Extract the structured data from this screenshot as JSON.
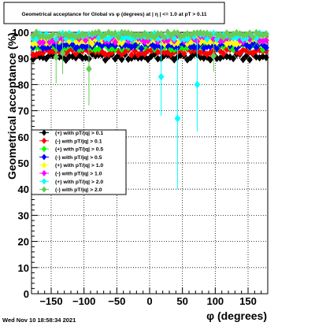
{
  "chart_data": {
    "type": "scatter",
    "title": "Geometrical acceptance for Global vs φ (degrees) at | η | <= 1.0 at pT > 0.11",
    "xlabel": "φ (degrees)",
    "ylabel": "Geometrical acceptance (%)",
    "xlim": [
      -180,
      180
    ],
    "ylim": [
      0,
      100
    ],
    "x_ticks": [
      -150,
      -100,
      -50,
      0,
      50,
      100,
      150
    ],
    "x_tick_labels": [
      "−150",
      "−100",
      "−50",
      "0",
      "50",
      "100",
      "150"
    ],
    "y_ticks": [
      0,
      10,
      20,
      30,
      40,
      50,
      60,
      70,
      80,
      90,
      100
    ],
    "y_tick_labels": [
      "0",
      "10",
      "20",
      "30",
      "40",
      "50",
      "60",
      "70",
      "80",
      "90",
      "100"
    ],
    "grid": true,
    "legend_position": "left-center",
    "nbins": 72,
    "series": [
      {
        "name": "(+) with pT/|q| > 0.1",
        "color": "#000000",
        "marker": "diamond",
        "base": 90.5,
        "spread": 1.2,
        "outliers": []
      },
      {
        "name": "(-) with pT/|q| > 0.1",
        "color": "#ff0000",
        "marker": "diamond",
        "base": 92.5,
        "spread": 1.2,
        "outliers": []
      },
      {
        "name": "(+) with pT/|q| > 0.5",
        "color": "#00ff00",
        "marker": "diamond",
        "base": 94.5,
        "spread": 1.2,
        "outliers": []
      },
      {
        "name": "(-) with pT/|q| > 0.5",
        "color": "#0000ff",
        "marker": "diamond",
        "base": 95.0,
        "spread": 1.2,
        "outliers": []
      },
      {
        "name": "(+) with pT/|q| > 1.0",
        "color": "#ffff00",
        "marker": "diamond",
        "base": 96.5,
        "spread": 1.0,
        "outliers": []
      },
      {
        "name": "(-) with pT/|q| > 1.0",
        "color": "#ff00ff",
        "marker": "diamond",
        "base": 97.5,
        "spread": 1.5,
        "outliers": []
      },
      {
        "name": "(+) with pT/|q| > 2.0",
        "color": "#00ffff",
        "marker": "diamond",
        "base": 98.5,
        "spread": 1.2,
        "outliers": [
          {
            "x": 17.5,
            "y": 83,
            "err": 15
          },
          {
            "x": 42.5,
            "y": 67,
            "err": 27
          },
          {
            "x": 72.5,
            "y": 80,
            "err": 18
          }
        ]
      },
      {
        "name": "(-) with pT/|q| > 2.0",
        "color": "#66cc55",
        "marker": "diamond",
        "base": 99.0,
        "spread": 1.0,
        "outliers": [
          {
            "x": -142.5,
            "y": 90.5,
            "err": 10
          },
          {
            "x": -132.5,
            "y": 92,
            "err": 8
          },
          {
            "x": -92.5,
            "y": 86,
            "err": 14
          },
          {
            "x": 97.5,
            "y": 91,
            "err": 6
          }
        ]
      }
    ]
  },
  "footer": {
    "timestamp": "Wed Nov 10 18:58:34 2021"
  }
}
